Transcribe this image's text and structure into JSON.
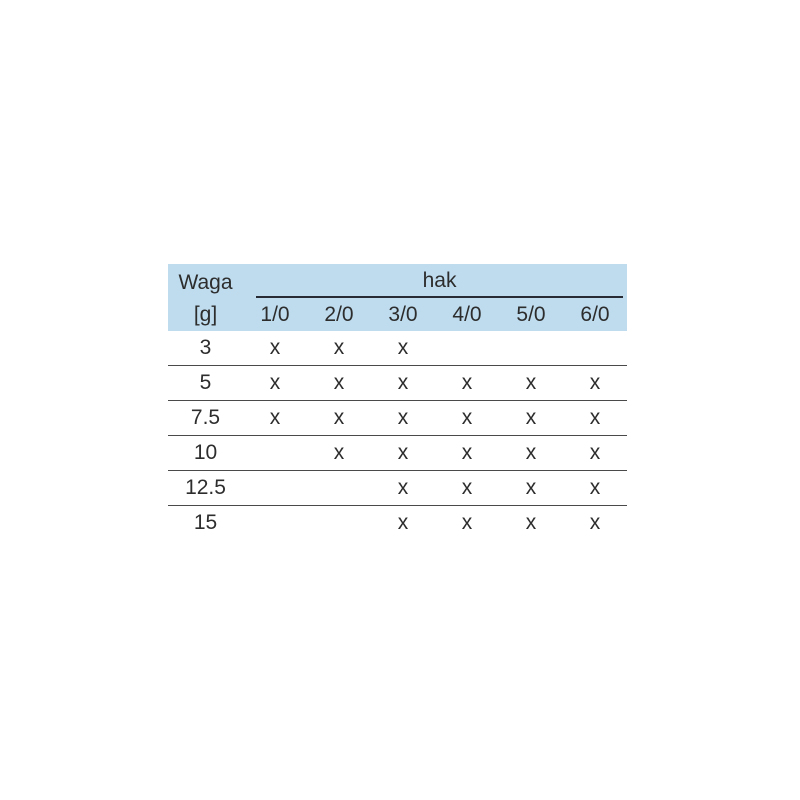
{
  "chart_data": {
    "type": "table",
    "row_header_line1": "Waga",
    "row_header_line2": "[g]",
    "column_group_label": "hak",
    "columns": [
      "1/0",
      "2/0",
      "3/0",
      "4/0",
      "5/0",
      "6/0"
    ],
    "rows": [
      {
        "weight": "3",
        "marks": [
          "x",
          "x",
          "x",
          "",
          "",
          ""
        ]
      },
      {
        "weight": "5",
        "marks": [
          "x",
          "x",
          "x",
          "x",
          "x",
          "x"
        ]
      },
      {
        "weight": "7.5",
        "marks": [
          "x",
          "x",
          "x",
          "x",
          "x",
          "x"
        ]
      },
      {
        "weight": "10",
        "marks": [
          "",
          "x",
          "x",
          "x",
          "x",
          "x"
        ]
      },
      {
        "weight": "12.5",
        "marks": [
          "",
          "",
          "x",
          "x",
          "x",
          "x"
        ]
      },
      {
        "weight": "15",
        "marks": [
          "",
          "",
          "x",
          "x",
          "x",
          "x"
        ]
      }
    ]
  },
  "colors": {
    "header_bg": "#bedcee",
    "text": "#2d2d2d",
    "separator_line": "#4a4a4a",
    "hak_underline": "#272b33",
    "page_bg": "#ffffff"
  }
}
